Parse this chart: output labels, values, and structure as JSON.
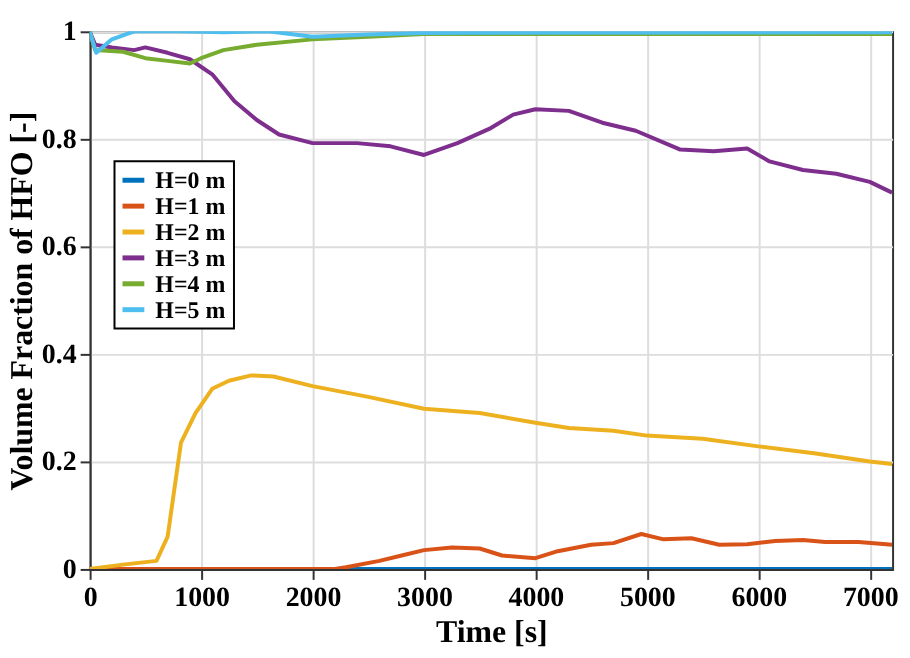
{
  "chart_data": {
    "type": "line",
    "xlabel": "Time [s]",
    "ylabel": "Volume Fraction of HFO [-]",
    "xlim": [
      0,
      7200
    ],
    "xticks": [
      0,
      1000,
      2000,
      3000,
      4000,
      5000,
      6000,
      7000
    ],
    "ylim": [
      0,
      1
    ],
    "yticks": [
      0,
      0.2,
      0.4,
      0.6,
      0.8,
      1
    ],
    "grid": true,
    "legend": "left",
    "line_style": "solid",
    "marker": "none",
    "series": [
      {
        "name": "H=0 m",
        "color": "#0072bd",
        "x": [
          0,
          1000,
          2000,
          3000,
          4000,
          5000,
          6000,
          7200
        ],
        "values": [
          0,
          0,
          0,
          0,
          0,
          0,
          0,
          0
        ]
      },
      {
        "name": "H=1 m",
        "color": "#d95319",
        "x": [
          0,
          1000,
          2000,
          2200,
          2300,
          2600,
          2800,
          3000,
          3250,
          3500,
          3700,
          4000,
          4200,
          4500,
          4700,
          4950,
          5150,
          5400,
          5650,
          5900,
          6150,
          6400,
          6600,
          6900,
          7200
        ],
        "values": [
          0,
          0,
          0,
          0,
          0.003,
          0.015,
          0.025,
          0.035,
          0.04,
          0.038,
          0.025,
          0.02,
          0.033,
          0.045,
          0.048,
          0.065,
          0.055,
          0.057,
          0.045,
          0.046,
          0.052,
          0.054,
          0.05,
          0.05,
          0.045
        ]
      },
      {
        "name": "H=2 m",
        "color": "#edb120",
        "x": [
          0,
          300,
          600,
          700,
          820,
          950,
          1100,
          1250,
          1450,
          1650,
          2000,
          2500,
          3000,
          3500,
          4000,
          4300,
          4700,
          5000,
          5500,
          6000,
          6500,
          7000,
          7200
        ],
        "values": [
          0,
          0.008,
          0.015,
          0.06,
          0.235,
          0.29,
          0.335,
          0.35,
          0.36,
          0.358,
          0.34,
          0.32,
          0.298,
          0.29,
          0.272,
          0.262,
          0.257,
          0.248,
          0.242,
          0.228,
          0.215,
          0.2,
          0.195
        ]
      },
      {
        "name": "H=3 m",
        "color": "#7e2f8e",
        "x": [
          0,
          50,
          200,
          400,
          500,
          700,
          900,
          1100,
          1300,
          1500,
          1700,
          2000,
          2400,
          2700,
          3000,
          3300,
          3600,
          3800,
          4000,
          4300,
          4600,
          4900,
          5300,
          5600,
          5900,
          6100,
          6400,
          6700,
          7000,
          7200
        ],
        "values": [
          1.0,
          0.975,
          0.97,
          0.965,
          0.97,
          0.96,
          0.948,
          0.92,
          0.87,
          0.835,
          0.808,
          0.792,
          0.792,
          0.786,
          0.77,
          0.792,
          0.82,
          0.845,
          0.855,
          0.852,
          0.83,
          0.815,
          0.78,
          0.777,
          0.782,
          0.758,
          0.742,
          0.735,
          0.72,
          0.7
        ]
      },
      {
        "name": "H=4 m",
        "color": "#77ac30",
        "x": [
          0,
          50,
          300,
          500,
          700,
          900,
          1000,
          1200,
          1500,
          2000,
          2500,
          3000,
          7200
        ],
        "values": [
          1.0,
          0.965,
          0.962,
          0.95,
          0.945,
          0.94,
          0.95,
          0.965,
          0.975,
          0.985,
          0.99,
          0.995,
          0.995
        ]
      },
      {
        "name": "H=5 m",
        "color": "#4dbeee",
        "x": [
          0,
          60,
          200,
          400,
          800,
          1200,
          1600,
          2000,
          2500,
          3000,
          7200
        ],
        "values": [
          1.0,
          0.96,
          0.985,
          1.0,
          1.0,
          0.998,
          1.0,
          0.99,
          0.994,
          0.997,
          0.998
        ]
      }
    ]
  }
}
